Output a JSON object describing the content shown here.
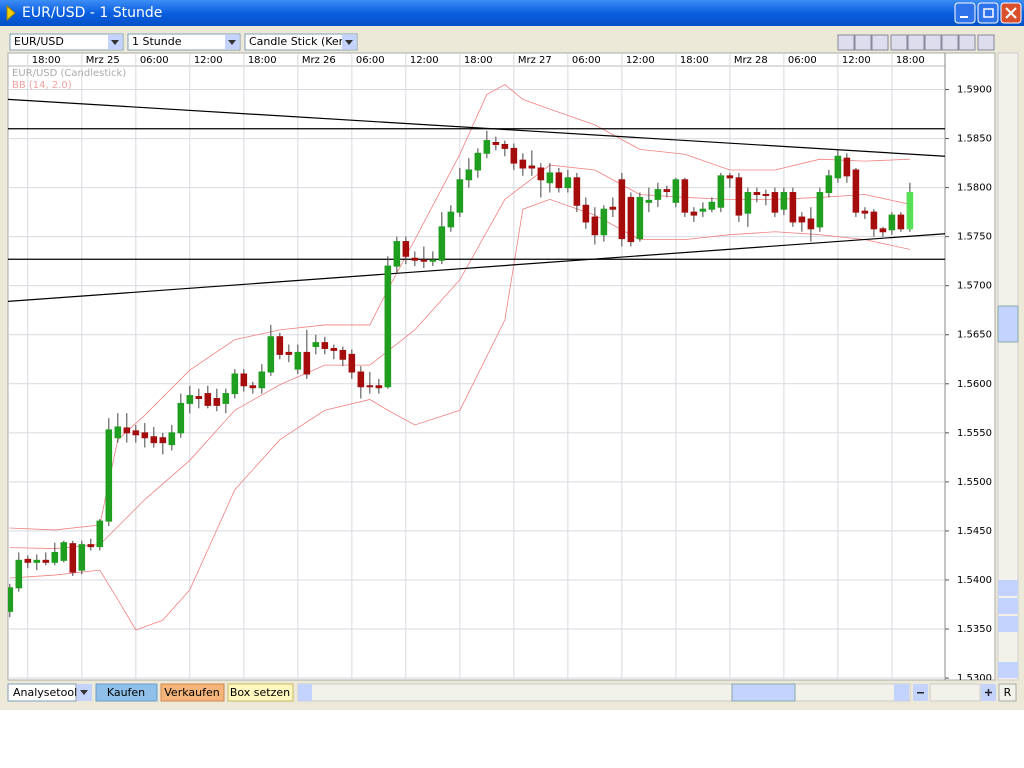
{
  "window": {
    "title": "EUR/USD - 1 Stunde"
  },
  "toolbar": {
    "symbol": "EUR/USD",
    "interval": "1 Stunde",
    "chart_type": "Candle Stick (Kerze"
  },
  "bottom_bar": {
    "buttons": [
      "Analysetool",
      "Kaufen",
      "Verkaufen",
      "Box setzen"
    ],
    "reset": "R"
  },
  "chart_data": {
    "type": "candlestick",
    "instrument_label": "EUR/USD (Candlestick)",
    "indicator_label": "BB (14, 2.0)",
    "up_color": "#1f9e1f",
    "down_color": "#a50d0d",
    "current_color": "#55e055",
    "band_color": "#f08080",
    "trendline_color": "#000000",
    "grid": true,
    "xlim": [
      -0.2,
      103.9
    ],
    "ylim": [
      1.5298,
      1.5924
    ],
    "xticks": [
      {
        "value": 2,
        "label": "18:00"
      },
      {
        "value": 8,
        "label": "Mrz 25"
      },
      {
        "value": 14,
        "label": "06:00"
      },
      {
        "value": 20,
        "label": "12:00"
      },
      {
        "value": 26,
        "label": "18:00"
      },
      {
        "value": 32,
        "label": "Mrz 26"
      },
      {
        "value": 38,
        "label": "06:00"
      },
      {
        "value": 44,
        "label": "12:00"
      },
      {
        "value": 50,
        "label": "18:00"
      },
      {
        "value": 56,
        "label": "Mrz 27"
      },
      {
        "value": 62,
        "label": "06:00"
      },
      {
        "value": 68,
        "label": "12:00"
      },
      {
        "value": 74,
        "label": "18:00"
      },
      {
        "value": 80,
        "label": "Mrz 28"
      },
      {
        "value": 86,
        "label": "06:00"
      },
      {
        "value": 92,
        "label": "12:00"
      },
      {
        "value": 98,
        "label": "18:00"
      }
    ],
    "yticks": [
      {
        "value": 1.53,
        "label": "1.5300"
      },
      {
        "value": 1.535,
        "label": "1.5350"
      },
      {
        "value": 1.54,
        "label": "1.5400"
      },
      {
        "value": 1.545,
        "label": "1.5450"
      },
      {
        "value": 1.55,
        "label": "1.5500"
      },
      {
        "value": 1.555,
        "label": "1.5550"
      },
      {
        "value": 1.56,
        "label": "1.5600"
      },
      {
        "value": 1.565,
        "label": "1.5650"
      },
      {
        "value": 1.57,
        "label": "1.5700"
      },
      {
        "value": 1.575,
        "label": "1.5750"
      },
      {
        "value": 1.58,
        "label": "1.5800"
      },
      {
        "value": 1.585,
        "label": "1.5850"
      },
      {
        "value": 1.59,
        "label": "1.5900"
      }
    ],
    "open": [
      1.5368,
      1.5392,
      1.5421,
      1.5418,
      1.542,
      1.5418,
      1.542,
      1.5437,
      1.541,
      1.5436,
      1.5434,
      1.546,
      1.5545,
      1.5555,
      1.5552,
      1.555,
      1.5546,
      1.5545,
      1.5538,
      1.555,
      1.558,
      1.5587,
      1.559,
      1.5585,
      1.558,
      1.559,
      1.561,
      1.5598,
      1.5596,
      1.5612,
      1.5648,
      1.5632,
      1.5615,
      1.5632,
      1.5638,
      1.5642,
      1.5636,
      1.5634,
      1.563,
      1.5612,
      1.5598,
      1.5598,
      1.5597,
      1.572,
      1.5745,
      1.5728,
      1.5726,
      1.5725,
      1.5726,
      1.576,
      1.5775,
      1.5808,
      1.5818,
      1.5835,
      1.5846,
      1.5844,
      1.584,
      1.5828,
      1.5822,
      1.582,
      1.5805,
      1.5815,
      1.58,
      1.581,
      1.5782,
      1.577,
      1.5752,
      1.578,
      1.5808,
      1.579,
      1.5748,
      1.5785,
      1.5788,
      1.5798,
      1.5785,
      1.5808,
      1.5775,
      1.5776,
      1.5778,
      1.578,
      1.5812,
      1.581,
      1.5774,
      1.5795,
      1.5793,
      1.5795,
      1.5778,
      1.5795,
      1.577,
      1.5768,
      1.576,
      1.5795,
      1.581,
      1.583,
      1.5818,
      1.5776,
      1.5775,
      1.5758,
      1.5757,
      1.5772,
      1.5758
    ],
    "high": [
      1.5396,
      1.5428,
      1.5425,
      1.5426,
      1.5428,
      1.5438,
      1.544,
      1.544,
      1.544,
      1.5442,
      1.5462,
      1.5565,
      1.557,
      1.557,
      1.5558,
      1.556,
      1.5556,
      1.555,
      1.5558,
      1.559,
      1.5598,
      1.5595,
      1.5598,
      1.5595,
      1.5595,
      1.5615,
      1.5615,
      1.5602,
      1.562,
      1.566,
      1.5652,
      1.564,
      1.564,
      1.5655,
      1.565,
      1.5648,
      1.564,
      1.5638,
      1.5635,
      1.5618,
      1.5612,
      1.5605,
      1.573,
      1.575,
      1.575,
      1.5735,
      1.574,
      1.5735,
      1.5775,
      1.5782,
      1.582,
      1.583,
      1.584,
      1.5858,
      1.5852,
      1.5848,
      1.5845,
      1.5835,
      1.5838,
      1.5825,
      1.5825,
      1.582,
      1.5818,
      1.5815,
      1.579,
      1.578,
      1.5782,
      1.579,
      1.5815,
      1.5795,
      1.5795,
      1.58,
      1.5805,
      1.5802,
      1.581,
      1.581,
      1.578,
      1.5785,
      1.579,
      1.5815,
      1.5815,
      1.5815,
      1.58,
      1.58,
      1.5798,
      1.58,
      1.58,
      1.58,
      1.5775,
      1.578,
      1.58,
      1.5818,
      1.5838,
      1.5835,
      1.582,
      1.578,
      1.5778,
      1.576,
      1.5775,
      1.5775,
      1.5805
    ],
    "low": [
      1.5362,
      1.5388,
      1.5412,
      1.541,
      1.5415,
      1.5415,
      1.5418,
      1.5404,
      1.5406,
      1.543,
      1.543,
      1.5455,
      1.554,
      1.554,
      1.554,
      1.5535,
      1.5535,
      1.5528,
      1.5532,
      1.5545,
      1.557,
      1.5575,
      1.5575,
      1.5572,
      1.557,
      1.5585,
      1.5592,
      1.559,
      1.559,
      1.5608,
      1.5625,
      1.5622,
      1.561,
      1.5605,
      1.563,
      1.563,
      1.5625,
      1.5618,
      1.5605,
      1.5585,
      1.559,
      1.559,
      1.5595,
      1.5712,
      1.5722,
      1.572,
      1.5718,
      1.572,
      1.5722,
      1.5755,
      1.577,
      1.58,
      1.581,
      1.583,
      1.5838,
      1.5832,
      1.5818,
      1.5812,
      1.5812,
      1.579,
      1.5795,
      1.5795,
      1.5795,
      1.5775,
      1.5758,
      1.5742,
      1.5745,
      1.577,
      1.574,
      1.574,
      1.5745,
      1.5775,
      1.578,
      1.579,
      1.578,
      1.577,
      1.5765,
      1.577,
      1.5775,
      1.5775,
      1.58,
      1.5765,
      1.576,
      1.5785,
      1.5782,
      1.577,
      1.5772,
      1.576,
      1.5755,
      1.5745,
      1.5755,
      1.579,
      1.5805,
      1.5805,
      1.577,
      1.5768,
      1.575,
      1.575,
      1.5752,
      1.5755,
      1.5755
    ],
    "close": [
      1.5392,
      1.542,
      1.5418,
      1.542,
      1.5418,
      1.5428,
      1.5438,
      1.5408,
      1.5436,
      1.5434,
      1.546,
      1.5553,
      1.5556,
      1.555,
      1.5548,
      1.5545,
      1.554,
      1.554,
      1.555,
      1.558,
      1.5588,
      1.5585,
      1.5578,
      1.5578,
      1.559,
      1.561,
      1.5598,
      1.5596,
      1.5612,
      1.5648,
      1.563,
      1.563,
      1.5632,
      1.561,
      1.5642,
      1.5636,
      1.5634,
      1.5625,
      1.5612,
      1.5597,
      1.5597,
      1.5596,
      1.572,
      1.5745,
      1.573,
      1.5726,
      1.5725,
      1.5726,
      1.576,
      1.5775,
      1.5808,
      1.5818,
      1.5835,
      1.5848,
      1.5844,
      1.584,
      1.5825,
      1.582,
      1.582,
      1.5808,
      1.5815,
      1.58,
      1.581,
      1.5782,
      1.5765,
      1.5752,
      1.5778,
      1.5778,
      1.5748,
      1.5745,
      1.579,
      1.5787,
      1.5798,
      1.5796,
      1.5808,
      1.5775,
      1.5772,
      1.5778,
      1.5785,
      1.5812,
      1.581,
      1.5772,
      1.5795,
      1.5793,
      1.5792,
      1.5775,
      1.5795,
      1.5765,
      1.5765,
      1.5758,
      1.5795,
      1.5812,
      1.5832,
      1.5812,
      1.5775,
      1.5774,
      1.5758,
      1.5755,
      1.5772,
      1.5758,
      1.5795
    ],
    "bands": [
      {
        "x": [
          0,
          5,
          10,
          11,
          12,
          15,
          20,
          25,
          30,
          35,
          40,
          42,
          45,
          50,
          53,
          55,
          57,
          60,
          65,
          70,
          75,
          80,
          85,
          90,
          95,
          100
        ],
        "values": [
          1.5453,
          1.5451,
          1.5456,
          1.55,
          1.5543,
          1.5568,
          1.5614,
          1.5645,
          1.5655,
          1.566,
          1.566,
          1.5696,
          1.5747,
          1.5834,
          1.5895,
          1.5905,
          1.589,
          1.588,
          1.5864,
          1.5839,
          1.5834,
          1.5818,
          1.5818,
          1.5829,
          1.5827,
          1.5829
        ]
      },
      {
        "x": [
          0,
          5,
          10,
          15,
          20,
          25,
          30,
          35,
          40,
          45,
          50,
          55,
          60,
          65,
          70,
          75,
          80,
          85,
          90,
          95,
          100
        ],
        "values": [
          1.5433,
          1.5432,
          1.5436,
          1.5482,
          1.5522,
          1.5573,
          1.5599,
          1.5619,
          1.5619,
          1.5655,
          1.5706,
          1.5788,
          1.5823,
          1.5818,
          1.5793,
          1.579,
          1.5788,
          1.5788,
          1.579,
          1.5793,
          1.5783
        ]
      },
      {
        "x": [
          0,
          5,
          10,
          12,
          14,
          17,
          20,
          25,
          30,
          35,
          40,
          42,
          45,
          50,
          55,
          57,
          60,
          65,
          70,
          75,
          80,
          85,
          90,
          95,
          100
        ],
        "values": [
          1.5402,
          1.5405,
          1.541,
          1.538,
          1.5349,
          1.5359,
          1.539,
          1.5492,
          1.5543,
          1.5573,
          1.5584,
          1.5573,
          1.5558,
          1.5573,
          1.5665,
          1.5778,
          1.5788,
          1.5772,
          1.5747,
          1.5747,
          1.5752,
          1.5755,
          1.5752,
          1.5747,
          1.5737
        ]
      }
    ],
    "trendlines": [
      {
        "x": [
          -0.2,
          103.9
        ],
        "values": [
          1.586,
          1.586
        ]
      },
      {
        "x": [
          -0.2,
          103.9
        ],
        "values": [
          1.5727,
          1.5727
        ]
      },
      {
        "x": [
          -0.2,
          103.9
        ],
        "values": [
          1.589,
          1.5832
        ]
      },
      {
        "x": [
          -0.2,
          103.9
        ],
        "values": [
          1.5684,
          1.5753
        ]
      }
    ]
  }
}
